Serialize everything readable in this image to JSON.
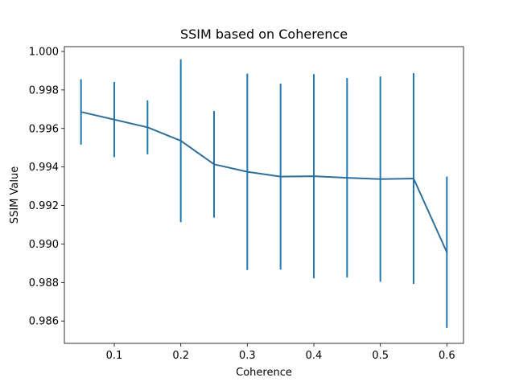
{
  "chart_data": {
    "type": "line",
    "title": "SSIM based on Coherence",
    "xlabel": "Coherence",
    "ylabel": "SSIM Value",
    "xlim": [
      0.025,
      0.625
    ],
    "ylim": [
      0.98484,
      1.00025
    ],
    "x_ticks": [
      0.1,
      0.2,
      0.3,
      0.4,
      0.5,
      0.6
    ],
    "x_tick_labels": [
      "0.1",
      "0.2",
      "0.3",
      "0.4",
      "0.5",
      "0.6"
    ],
    "y_ticks": [
      0.986,
      0.988,
      0.99,
      0.992,
      0.994,
      0.996,
      0.998,
      1.0
    ],
    "y_tick_labels": [
      "0.986",
      "0.988",
      "0.990",
      "0.992",
      "0.994",
      "0.996",
      "0.998",
      "1.000"
    ],
    "grid": false,
    "legend": "none",
    "series": [
      {
        "color": "#2e6f9b",
        "x": [
          0.05,
          0.1,
          0.15,
          0.2,
          0.25,
          0.3,
          0.35,
          0.4,
          0.45,
          0.5,
          0.55,
          0.6
        ],
        "y": [
          0.99686,
          0.99646,
          0.99606,
          0.99536,
          0.99414,
          0.99375,
          0.9935,
          0.99352,
          0.99344,
          0.99337,
          0.9934,
          0.98957
        ],
        "error": [
          0.0017,
          0.00195,
          0.0014,
          0.00423,
          0.00277,
          0.0051,
          0.00483,
          0.0053,
          0.00518,
          0.00533,
          0.00547,
          0.00393
        ],
        "error_color": "#1f77b4"
      }
    ]
  }
}
